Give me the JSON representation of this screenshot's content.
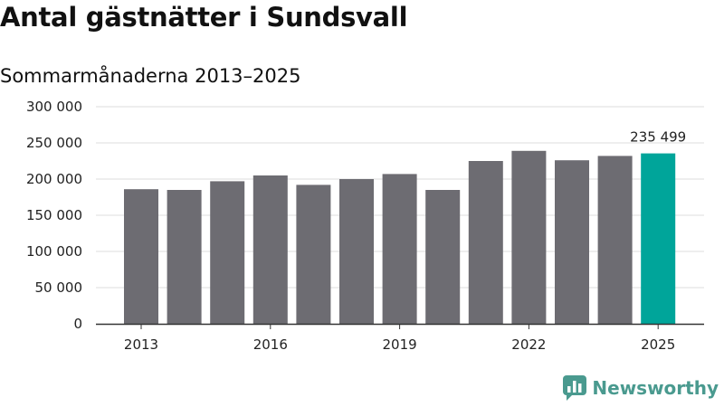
{
  "chart_data": {
    "type": "bar",
    "title": "Antal gästnätter i Sundsvall",
    "subtitle": "Sommarmånaderna 2013–2025",
    "categories": [
      "2013",
      "2014",
      "2015",
      "2016",
      "2017",
      "2018",
      "2019",
      "2020",
      "2021",
      "2022",
      "2023",
      "2024",
      "2025"
    ],
    "values": [
      186000,
      185000,
      197000,
      205000,
      192000,
      200000,
      207000,
      185000,
      225000,
      239000,
      226000,
      232000,
      235499
    ],
    "x_tick_labels": [
      "2013",
      "2016",
      "2019",
      "2022",
      "2025"
    ],
    "y_ticks": [
      0,
      50000,
      100000,
      150000,
      200000,
      250000,
      300000
    ],
    "y_tick_labels": [
      "0",
      "50 000",
      "100 000",
      "150 000",
      "200 000",
      "250 000",
      "300 000"
    ],
    "ylim": [
      0,
      300000
    ],
    "grid": true,
    "highlight_index": 12,
    "highlight_label": "235 499",
    "colors": {
      "bar": "#6d6c72",
      "highlight": "#00a59a",
      "grid": "#dddddd",
      "axis": "#333333"
    }
  },
  "branding": {
    "logo_text": "Newsworthy",
    "logo_icon": "bar-chart-speech-bubble-icon",
    "logo_color": "#4a9a8f"
  }
}
